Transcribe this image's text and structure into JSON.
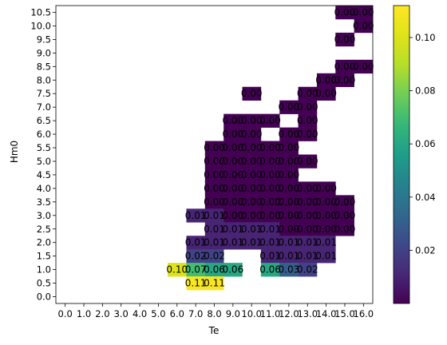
{
  "chart_data": {
    "type": "heatmap",
    "title": "",
    "xlabel": "Te",
    "ylabel": "Hm0",
    "x_ticks": [
      "0.0",
      "1.0",
      "2.0",
      "3.0",
      "4.0",
      "5.0",
      "6.0",
      "7.0",
      "8.0",
      "9.0",
      "10.0",
      "11.0",
      "12.0",
      "13.0",
      "14.0",
      "15.0",
      "16.0"
    ],
    "y_ticks": [
      "10.5",
      "10.0",
      "9.5",
      "9.0",
      "8.5",
      "8.0",
      "7.5",
      "7.0",
      "6.5",
      "6.0",
      "5.5",
      "5.0",
      "4.5",
      "4.0",
      "3.5",
      "3.0",
      "2.5",
      "2.0",
      "1.5",
      "1.0",
      "0.5",
      "0.0"
    ],
    "colorbar": {
      "colormap": "viridis",
      "vmin": 0.0,
      "vmax": 0.112,
      "ticks": [
        "0.02",
        "0.04",
        "0.06",
        "0.08",
        "0.10"
      ],
      "tick_values": [
        0.02,
        0.04,
        0.06,
        0.08,
        0.1
      ]
    },
    "cells": [
      {
        "te": "15.0",
        "hm0": "10.5",
        "value": 0.0,
        "label": "0.00"
      },
      {
        "te": "16.0",
        "hm0": "10.5",
        "value": 0.0,
        "label": "0.00"
      },
      {
        "te": "16.0",
        "hm0": "10.0",
        "value": 0.0,
        "label": "0.00"
      },
      {
        "te": "15.0",
        "hm0": "9.5",
        "value": 0.0,
        "label": "0.00"
      },
      {
        "te": "15.0",
        "hm0": "8.5",
        "value": 0.0,
        "label": "0.00"
      },
      {
        "te": "16.0",
        "hm0": "8.5",
        "value": 0.0,
        "label": "0.00"
      },
      {
        "te": "14.0",
        "hm0": "8.0",
        "value": 0.0,
        "label": "0.00"
      },
      {
        "te": "15.0",
        "hm0": "8.0",
        "value": 0.0,
        "label": "0.00"
      },
      {
        "te": "10.0",
        "hm0": "7.5",
        "value": 0.0,
        "label": "0.00"
      },
      {
        "te": "13.0",
        "hm0": "7.5",
        "value": 0.0,
        "label": "0.00"
      },
      {
        "te": "14.0",
        "hm0": "7.5",
        "value": 0.0,
        "label": "0.00"
      },
      {
        "te": "12.0",
        "hm0": "7.0",
        "value": 0.0,
        "label": "0.00"
      },
      {
        "te": "13.0",
        "hm0": "7.0",
        "value": 0.0,
        "label": "0.00"
      },
      {
        "te": "9.0",
        "hm0": "6.5",
        "value": 0.0,
        "label": "0.00"
      },
      {
        "te": "10.0",
        "hm0": "6.5",
        "value": 0.0,
        "label": "0.00"
      },
      {
        "te": "11.0",
        "hm0": "6.5",
        "value": 0.0,
        "label": "0.00"
      },
      {
        "te": "13.0",
        "hm0": "6.5",
        "value": 0.0,
        "label": "0.00"
      },
      {
        "te": "9.0",
        "hm0": "6.0",
        "value": 0.0,
        "label": "0.00"
      },
      {
        "te": "10.0",
        "hm0": "6.0",
        "value": 0.0,
        "label": "0.00"
      },
      {
        "te": "12.0",
        "hm0": "6.0",
        "value": 0.0,
        "label": "0.00"
      },
      {
        "te": "13.0",
        "hm0": "6.0",
        "value": 0.0,
        "label": "0.00"
      },
      {
        "te": "8.0",
        "hm0": "5.5",
        "value": 0.0,
        "label": "0.00"
      },
      {
        "te": "9.0",
        "hm0": "5.5",
        "value": 0.0,
        "label": "0.00"
      },
      {
        "te": "10.0",
        "hm0": "5.5",
        "value": 0.0,
        "label": "0.00"
      },
      {
        "te": "11.0",
        "hm0": "5.5",
        "value": 0.0,
        "label": "0.00"
      },
      {
        "te": "12.0",
        "hm0": "5.5",
        "value": 0.0,
        "label": "0.00"
      },
      {
        "te": "8.0",
        "hm0": "5.0",
        "value": 0.0,
        "label": "0.00"
      },
      {
        "te": "9.0",
        "hm0": "5.0",
        "value": 0.0,
        "label": "0.00"
      },
      {
        "te": "10.0",
        "hm0": "5.0",
        "value": 0.0,
        "label": "0.00"
      },
      {
        "te": "11.0",
        "hm0": "5.0",
        "value": 0.0,
        "label": "0.00"
      },
      {
        "te": "12.0",
        "hm0": "5.0",
        "value": 0.0,
        "label": "0.00"
      },
      {
        "te": "13.0",
        "hm0": "5.0",
        "value": 0.0,
        "label": "0.00"
      },
      {
        "te": "8.0",
        "hm0": "4.5",
        "value": 0.0,
        "label": "0.00"
      },
      {
        "te": "9.0",
        "hm0": "4.5",
        "value": 0.0,
        "label": "0.00"
      },
      {
        "te": "10.0",
        "hm0": "4.5",
        "value": 0.0,
        "label": "0.00"
      },
      {
        "te": "11.0",
        "hm0": "4.5",
        "value": 0.0,
        "label": "0.00"
      },
      {
        "te": "12.0",
        "hm0": "4.5",
        "value": 0.0,
        "label": "0.00"
      },
      {
        "te": "8.0",
        "hm0": "4.0",
        "value": 0.0,
        "label": "0.00"
      },
      {
        "te": "9.0",
        "hm0": "4.0",
        "value": 0.0,
        "label": "0.00"
      },
      {
        "te": "10.0",
        "hm0": "4.0",
        "value": 0.0,
        "label": "0.00"
      },
      {
        "te": "11.0",
        "hm0": "4.0",
        "value": 0.0,
        "label": "0.00"
      },
      {
        "te": "12.0",
        "hm0": "4.0",
        "value": 0.0,
        "label": "0.00"
      },
      {
        "te": "13.0",
        "hm0": "4.0",
        "value": 0.0,
        "label": "0.00"
      },
      {
        "te": "14.0",
        "hm0": "4.0",
        "value": 0.0,
        "label": "0.00"
      },
      {
        "te": "8.0",
        "hm0": "3.5",
        "value": 0.0,
        "label": "0.00"
      },
      {
        "te": "9.0",
        "hm0": "3.5",
        "value": 0.0,
        "label": "0.00"
      },
      {
        "te": "10.0",
        "hm0": "3.5",
        "value": 0.0,
        "label": "0.00"
      },
      {
        "te": "11.0",
        "hm0": "3.5",
        "value": 0.0,
        "label": "0.00"
      },
      {
        "te": "12.0",
        "hm0": "3.5",
        "value": 0.0,
        "label": "0.00"
      },
      {
        "te": "13.0",
        "hm0": "3.5",
        "value": 0.0,
        "label": "0.00"
      },
      {
        "te": "14.0",
        "hm0": "3.5",
        "value": 0.0,
        "label": "0.00"
      },
      {
        "te": "15.0",
        "hm0": "3.5",
        "value": 0.0,
        "label": "0.00"
      },
      {
        "te": "7.0",
        "hm0": "3.0",
        "value": 0.01,
        "label": "0.01"
      },
      {
        "te": "8.0",
        "hm0": "3.0",
        "value": 0.01,
        "label": "0.01"
      },
      {
        "te": "9.0",
        "hm0": "3.0",
        "value": 0.0,
        "label": "0.00"
      },
      {
        "te": "10.0",
        "hm0": "3.0",
        "value": 0.0,
        "label": "0.00"
      },
      {
        "te": "11.0",
        "hm0": "3.0",
        "value": 0.0,
        "label": "0.00"
      },
      {
        "te": "12.0",
        "hm0": "3.0",
        "value": 0.0,
        "label": "0.00"
      },
      {
        "te": "13.0",
        "hm0": "3.0",
        "value": 0.0,
        "label": "0.00"
      },
      {
        "te": "14.0",
        "hm0": "3.0",
        "value": 0.0,
        "label": "0.00"
      },
      {
        "te": "15.0",
        "hm0": "3.0",
        "value": 0.0,
        "label": "0.00"
      },
      {
        "te": "8.0",
        "hm0": "2.5",
        "value": 0.01,
        "label": "0.01"
      },
      {
        "te": "9.0",
        "hm0": "2.5",
        "value": 0.01,
        "label": "0.01"
      },
      {
        "te": "10.0",
        "hm0": "2.5",
        "value": 0.01,
        "label": "0.01"
      },
      {
        "te": "11.0",
        "hm0": "2.5",
        "value": 0.01,
        "label": "0.01"
      },
      {
        "te": "12.0",
        "hm0": "2.5",
        "value": 0.0,
        "label": "0.00"
      },
      {
        "te": "13.0",
        "hm0": "2.5",
        "value": 0.0,
        "label": "0.00"
      },
      {
        "te": "14.0",
        "hm0": "2.5",
        "value": 0.0,
        "label": "0.00"
      },
      {
        "te": "15.0",
        "hm0": "2.5",
        "value": 0.0,
        "label": "0.00"
      },
      {
        "te": "7.0",
        "hm0": "2.0",
        "value": 0.01,
        "label": "0.01"
      },
      {
        "te": "8.0",
        "hm0": "2.0",
        "value": 0.01,
        "label": "0.01"
      },
      {
        "te": "9.0",
        "hm0": "2.0",
        "value": 0.01,
        "label": "0.01"
      },
      {
        "te": "10.0",
        "hm0": "2.0",
        "value": 0.01,
        "label": "0.01"
      },
      {
        "te": "11.0",
        "hm0": "2.0",
        "value": 0.01,
        "label": "0.01"
      },
      {
        "te": "12.0",
        "hm0": "2.0",
        "value": 0.01,
        "label": "0.01"
      },
      {
        "te": "13.0",
        "hm0": "2.0",
        "value": 0.01,
        "label": "0.01"
      },
      {
        "te": "14.0",
        "hm0": "2.0",
        "value": 0.01,
        "label": "0.01"
      },
      {
        "te": "7.0",
        "hm0": "1.5",
        "value": 0.02,
        "label": "0.02"
      },
      {
        "te": "8.0",
        "hm0": "1.5",
        "value": 0.02,
        "label": "0.02"
      },
      {
        "te": "11.0",
        "hm0": "1.5",
        "value": 0.01,
        "label": "0.01"
      },
      {
        "te": "12.0",
        "hm0": "1.5",
        "value": 0.01,
        "label": "0.01"
      },
      {
        "te": "13.0",
        "hm0": "1.5",
        "value": 0.01,
        "label": "0.01"
      },
      {
        "te": "14.0",
        "hm0": "1.5",
        "value": 0.01,
        "label": "0.01"
      },
      {
        "te": "6.0",
        "hm0": "1.0",
        "value": 0.1,
        "label": "0.10"
      },
      {
        "te": "7.0",
        "hm0": "1.0",
        "value": 0.07,
        "label": "0.07"
      },
      {
        "te": "8.0",
        "hm0": "1.0",
        "value": 0.06,
        "label": "0.06"
      },
      {
        "te": "9.0",
        "hm0": "1.0",
        "value": 0.06,
        "label": "0.06"
      },
      {
        "te": "11.0",
        "hm0": "1.0",
        "value": 0.06,
        "label": "0.06"
      },
      {
        "te": "12.0",
        "hm0": "1.0",
        "value": 0.03,
        "label": "0.03"
      },
      {
        "te": "13.0",
        "hm0": "1.0",
        "value": 0.02,
        "label": "0.02"
      },
      {
        "te": "7.0",
        "hm0": "0.5",
        "value": 0.11,
        "label": "0.11"
      },
      {
        "te": "8.0",
        "hm0": "0.5",
        "value": 0.11,
        "label": "0.11"
      }
    ]
  }
}
